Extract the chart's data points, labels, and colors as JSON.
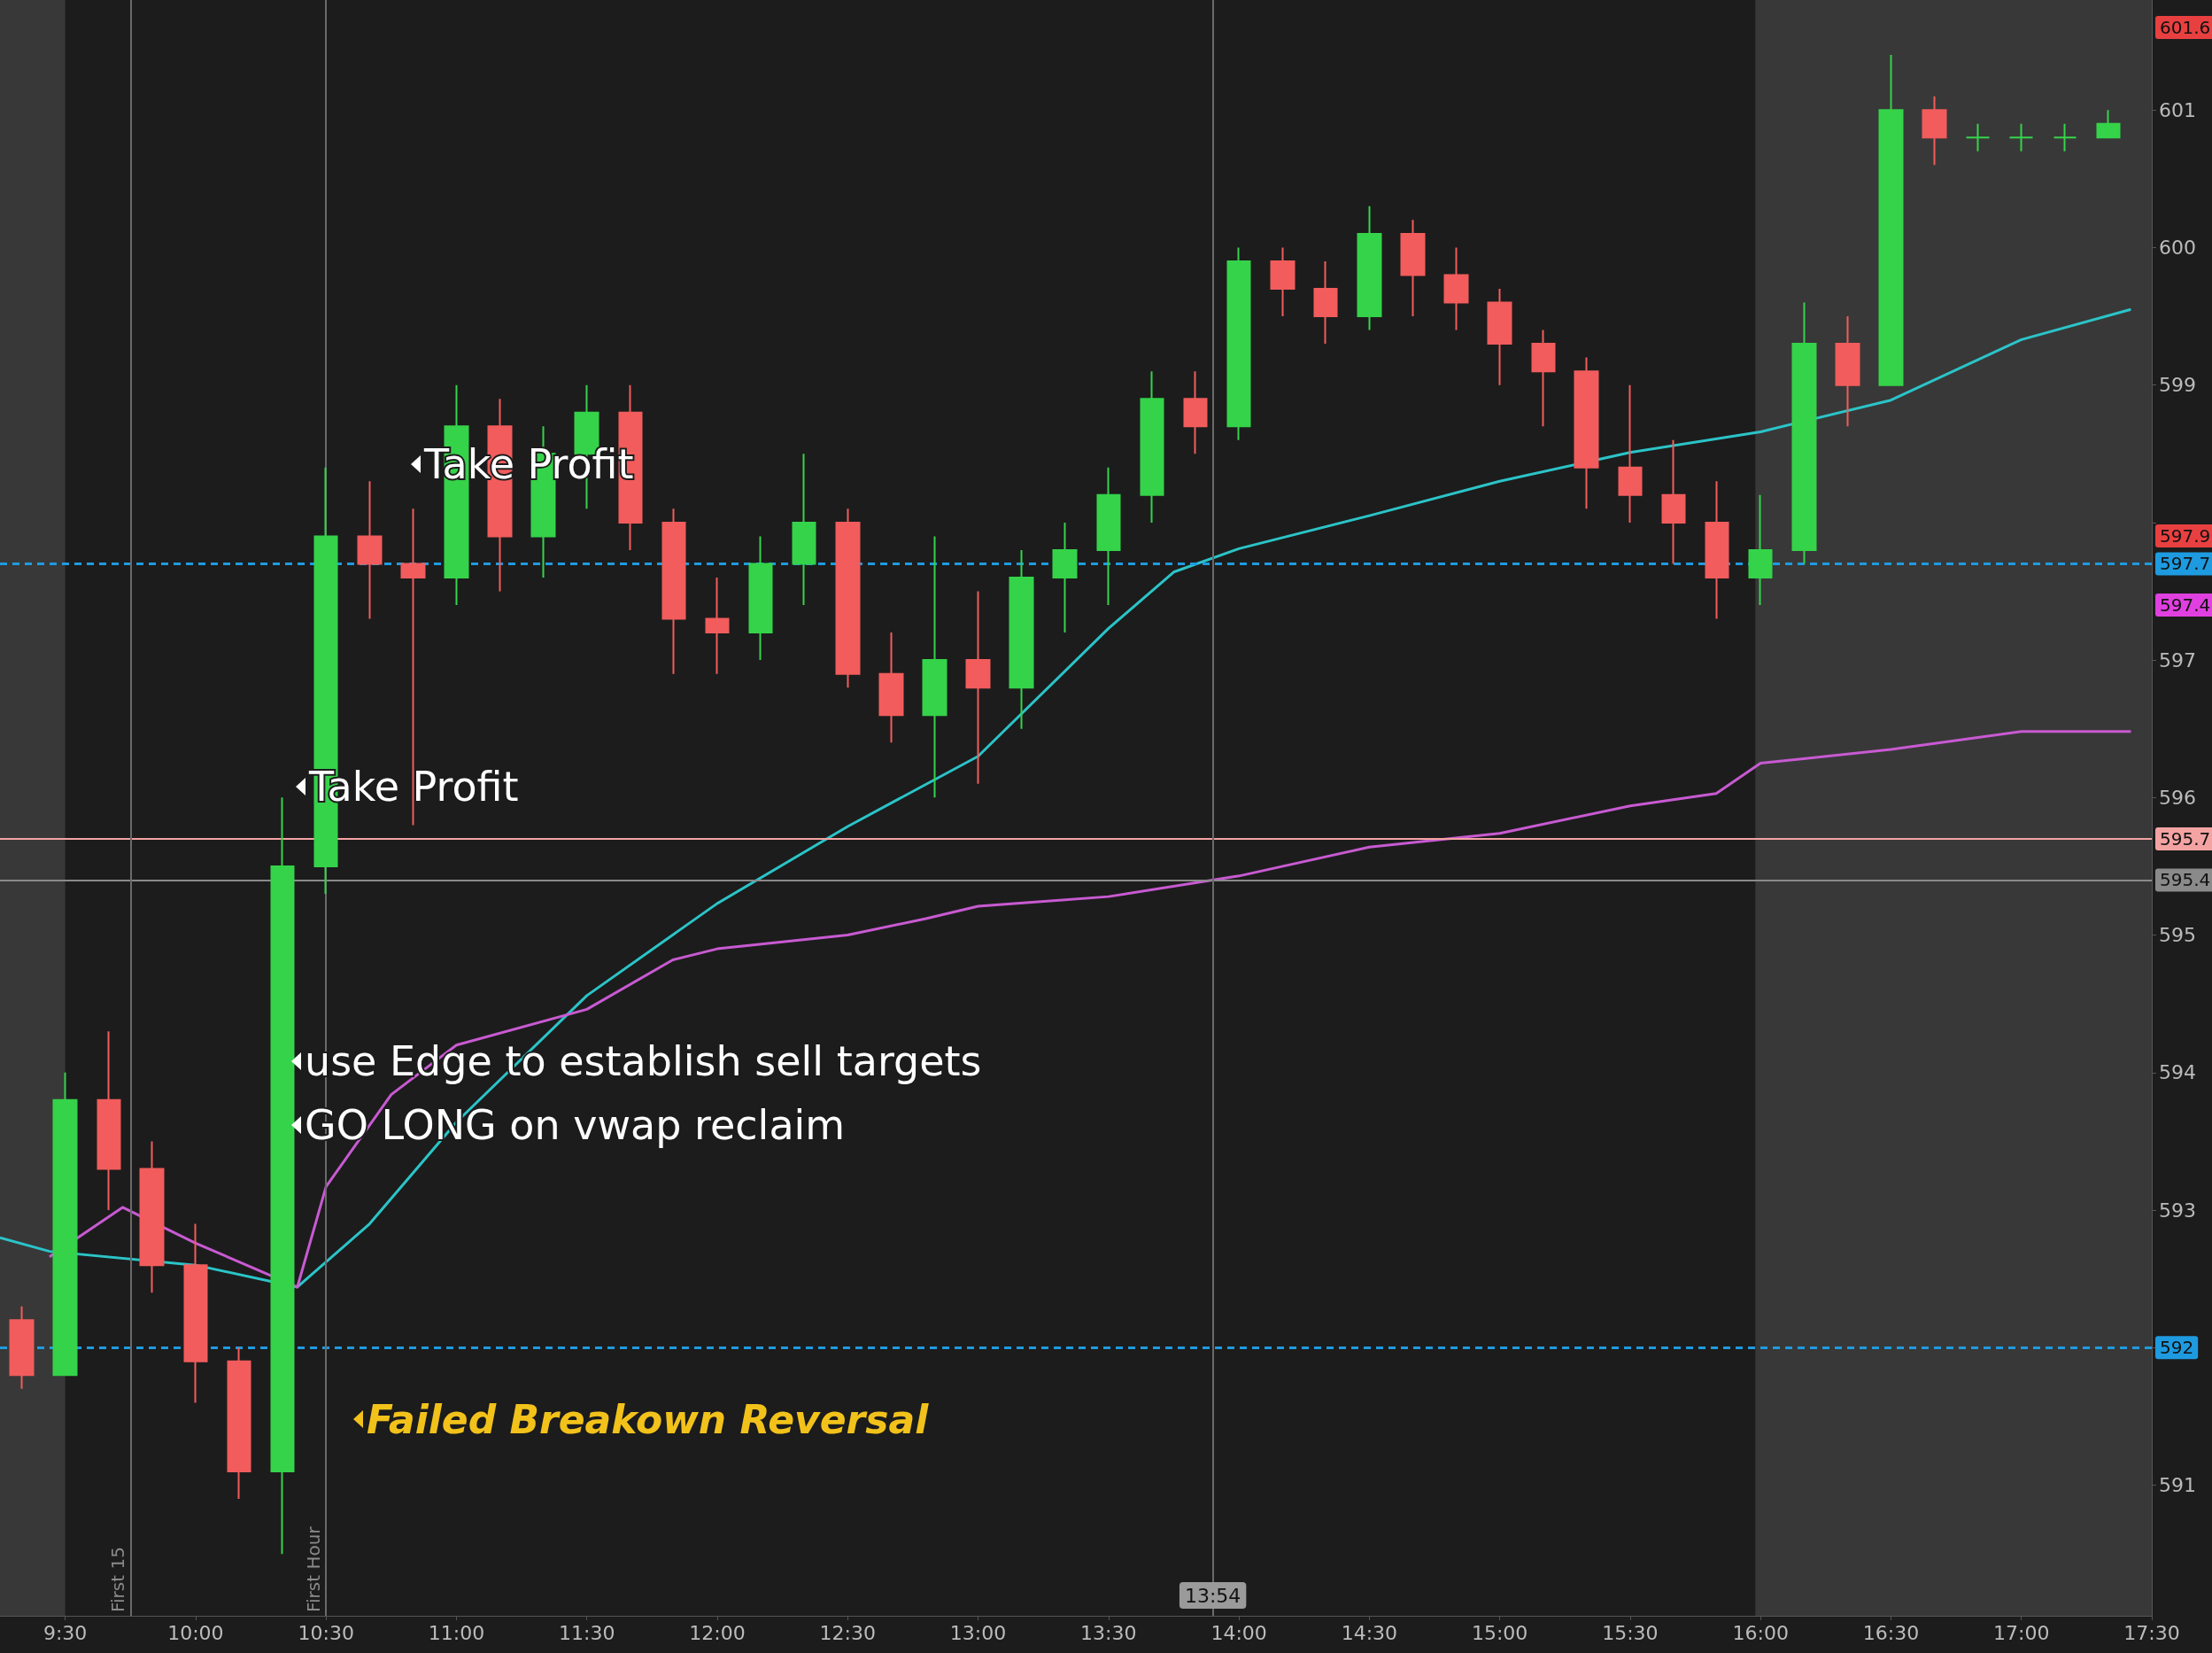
{
  "chart_data": {
    "type": "candlestick",
    "x": [
      9.333,
      9.5,
      9.667,
      9.833,
      10,
      10.167,
      10.333,
      10.5,
      10.667,
      10.833,
      11,
      11.167,
      11.333,
      11.5,
      11.667,
      11.833,
      12,
      12.167,
      12.333,
      12.5,
      12.667,
      12.833,
      13,
      13.167,
      13.333,
      13.5,
      13.667,
      13.833,
      14,
      14.167,
      14.333,
      14.5,
      14.667,
      14.833,
      15,
      15.167,
      15.333,
      15.5,
      15.667,
      15.833,
      16,
      16.167,
      16.333,
      16.5,
      16.667,
      16.833,
      17,
      17.167,
      17.333
    ],
    "ohlc": [
      [
        592.2,
        592.3,
        591.7,
        591.8
      ],
      [
        591.8,
        594.0,
        591.8,
        593.8
      ],
      [
        593.8,
        594.3,
        593.0,
        593.3
      ],
      [
        593.3,
        593.5,
        592.4,
        592.6
      ],
      [
        592.6,
        592.9,
        591.6,
        591.9
      ],
      [
        591.9,
        592.0,
        590.9,
        591.1
      ],
      [
        591.1,
        596.0,
        590.5,
        595.5
      ],
      [
        595.5,
        598.4,
        595.3,
        597.9
      ],
      [
        597.9,
        598.3,
        597.3,
        597.7
      ],
      [
        597.7,
        598.1,
        595.8,
        597.6
      ],
      [
        597.6,
        599.0,
        597.4,
        598.7
      ],
      [
        598.7,
        598.9,
        597.5,
        597.9
      ],
      [
        597.9,
        598.7,
        597.6,
        598.5
      ],
      [
        598.5,
        599.0,
        598.1,
        598.8
      ],
      [
        598.8,
        599.0,
        597.8,
        598.0
      ],
      [
        598.0,
        598.1,
        596.9,
        597.3
      ],
      [
        597.3,
        597.6,
        596.9,
        597.2
      ],
      [
        597.2,
        597.9,
        597.0,
        597.7
      ],
      [
        597.7,
        598.5,
        597.4,
        598.0
      ],
      [
        598.0,
        598.1,
        596.8,
        596.9
      ],
      [
        596.9,
        597.2,
        596.4,
        596.6
      ],
      [
        596.6,
        597.9,
        596.0,
        597.0
      ],
      [
        597.0,
        597.5,
        596.1,
        596.8
      ],
      [
        596.8,
        597.8,
        596.5,
        597.6
      ],
      [
        597.6,
        598.0,
        597.2,
        597.8
      ],
      [
        597.8,
        598.4,
        597.4,
        598.2
      ],
      [
        598.2,
        599.1,
        598.0,
        598.9
      ],
      [
        598.9,
        599.1,
        598.5,
        598.7
      ],
      [
        598.7,
        600.0,
        598.6,
        599.9
      ],
      [
        599.9,
        600.0,
        599.5,
        599.7
      ],
      [
        599.7,
        599.9,
        599.3,
        599.5
      ],
      [
        599.5,
        600.3,
        599.4,
        600.1
      ],
      [
        600.1,
        600.2,
        599.5,
        599.8
      ],
      [
        599.8,
        600.0,
        599.4,
        599.6
      ],
      [
        599.6,
        599.7,
        599.0,
        599.3
      ],
      [
        599.3,
        599.4,
        598.7,
        599.1
      ],
      [
        599.1,
        599.2,
        598.1,
        598.4
      ],
      [
        598.4,
        599.0,
        598.0,
        598.2
      ],
      [
        598.2,
        598.6,
        597.7,
        598.0
      ],
      [
        598.0,
        598.3,
        597.3,
        597.6
      ],
      [
        597.6,
        598.2,
        597.4,
        597.8
      ],
      [
        597.8,
        599.6,
        597.7,
        599.3
      ],
      [
        599.3,
        599.5,
        598.7,
        599.0
      ],
      [
        599.0,
        601.4,
        599.0,
        601.0
      ],
      [
        601.0,
        601.1,
        600.6,
        600.8
      ],
      [
        600.8,
        600.9,
        600.7,
        600.8
      ],
      [
        600.8,
        600.9,
        600.7,
        600.8
      ],
      [
        600.8,
        600.9,
        600.7,
        600.8
      ],
      [
        600.8,
        601.0,
        600.8,
        600.9
      ]
    ],
    "series": [
      {
        "type": "line",
        "color": "#2bc4c8",
        "x": [
          9.25,
          9.44,
          10,
          10.39,
          10.667,
          11,
          11.5,
          12,
          12.5,
          13,
          13.5,
          13.75,
          14,
          14.5,
          15,
          15.5,
          16,
          16.5,
          17,
          17.42
        ],
        "values": [
          592.8,
          592.7,
          592.6,
          592.44,
          592.9,
          593.64,
          594.56,
          595.23,
          595.79,
          596.3,
          597.23,
          597.64,
          597.81,
          598.05,
          598.3,
          598.51,
          598.66,
          598.89,
          599.33,
          599.55
        ]
      },
      {
        "type": "line",
        "color": "#c85ad2",
        "x": [
          9.44,
          9.72,
          10,
          10.39,
          10.5,
          10.75,
          11,
          11.5,
          11.83,
          12,
          12.5,
          12.8,
          13,
          13.5,
          14,
          14.5,
          15,
          15.5,
          15.83,
          16,
          16.5,
          17,
          17.42
        ],
        "values": [
          592.66,
          593.02,
          592.76,
          592.44,
          593.17,
          593.84,
          594.2,
          594.46,
          594.82,
          594.9,
          595.0,
          595.12,
          595.21,
          595.28,
          595.43,
          595.64,
          595.74,
          595.94,
          596.03,
          596.25,
          596.35,
          596.48,
          596.48
        ]
      }
    ],
    "xlim": [
      9.25,
      17.5
    ],
    "xticks": [
      {
        "value": 9.5,
        "label": "9:30"
      },
      {
        "value": 10,
        "label": "10:00"
      },
      {
        "value": 10.5,
        "label": "10:30"
      },
      {
        "value": 11,
        "label": "11:00"
      },
      {
        "value": 11.5,
        "label": "11:30"
      },
      {
        "value": 12,
        "label": "12:00"
      },
      {
        "value": 12.5,
        "label": "12:30"
      },
      {
        "value": 13,
        "label": "13:00"
      },
      {
        "value": 13.5,
        "label": "13:30"
      },
      {
        "value": 14,
        "label": "14:00"
      },
      {
        "value": 14.5,
        "label": "14:30"
      },
      {
        "value": 15,
        "label": "15:00"
      },
      {
        "value": 15.5,
        "label": "15:30"
      },
      {
        "value": 16,
        "label": "16:00"
      },
      {
        "value": 16.5,
        "label": "16:30"
      },
      {
        "value": 17,
        "label": "17:00"
      },
      {
        "value": 17.5,
        "label": "17:30"
      }
    ],
    "ylim": [
      590.05,
      601.8
    ],
    "yticks": [
      591,
      592,
      593,
      594,
      595,
      596,
      597,
      {
        "value": 598,
        "label": null
      },
      599,
      600,
      601
    ],
    "ref_lines": [
      {
        "axis": "y",
        "value": 597.7,
        "label": "597.7",
        "color": "#1e9be0",
        "line_style": "dashed"
      },
      {
        "axis": "y",
        "value": 592,
        "label": "592",
        "color": "#1e9be0",
        "line_style": "dashed"
      },
      {
        "axis": "y",
        "value": 595.7,
        "label": "595.7",
        "color": "#f4a3a3",
        "line_style": "solid"
      },
      {
        "axis": "y",
        "value": 595.4,
        "label": "595.4",
        "color": "#8a8a8a",
        "line_style": "solid"
      },
      {
        "axis": "x",
        "value": 9.75,
        "label": "First 15",
        "color": "#6a6a6a",
        "line_style": "solid"
      },
      {
        "axis": "x",
        "value": 10.5,
        "label": "First Hour",
        "color": "#6a6a6a",
        "line_style": "solid"
      },
      {
        "axis": "x",
        "value": 13.9,
        "color": "#6a6a6a",
        "line_style": "solid"
      }
    ],
    "bands": [
      {
        "axis": "x",
        "from": 9.25,
        "to": 9.5,
        "color": "#383838"
      },
      {
        "axis": "x",
        "from": 15.98,
        "to": 17.5,
        "color": "#383838"
      }
    ],
    "annotations": [
      "Take Profit",
      "Take Profit",
      "use Edge to establish sell targets",
      "GO LONG on vwap reclaim",
      "Failed Breakown Reversal",
      "13:54",
      "601.6",
      "597.9",
      "597.4"
    ],
    "grid": false
  }
}
